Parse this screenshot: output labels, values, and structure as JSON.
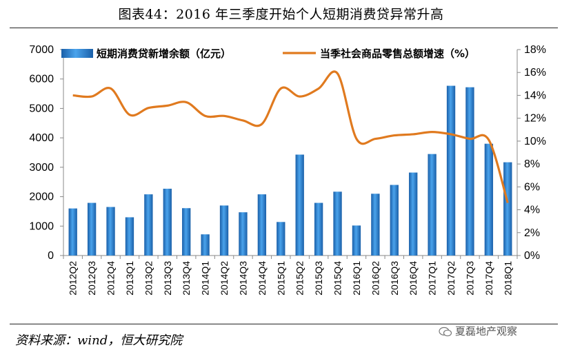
{
  "title": "图表44：2016 年三季度开始个人短期消费贷异常升高",
  "source": "资料来源：wind，恒大研究院",
  "watermark": "夏磊地产观察",
  "colors": {
    "bar": "#2e86d1",
    "bar_dark": "#1a5fa8",
    "line": "#e07a1f"
  },
  "chart_data": {
    "type": "bar+line",
    "categories": [
      "2012Q2",
      "2012Q3",
      "2012Q4",
      "2013Q1",
      "2013Q2",
      "2013Q3",
      "2013Q4",
      "2014Q1",
      "2014Q2",
      "2014Q3",
      "2014Q4",
      "2015Q1",
      "2015Q2",
      "2015Q3",
      "2015Q4",
      "2016Q1",
      "2016Q2",
      "2016Q3",
      "2016Q4",
      "2017Q1",
      "2017Q2",
      "2017Q3",
      "2017Q4",
      "2018Q1"
    ],
    "series": [
      {
        "name": "短期消费贷新增余额（亿元）",
        "type": "bar",
        "axis": "left",
        "values": [
          1600,
          1790,
          1650,
          1300,
          2080,
          2270,
          1610,
          720,
          1700,
          1470,
          2080,
          1140,
          3430,
          1790,
          2170,
          1020,
          2100,
          2400,
          2820,
          3450,
          5770,
          5720,
          3800,
          3170
        ]
      },
      {
        "name": "当季社会商品零售总额增速（%）",
        "type": "line",
        "axis": "right",
        "values": [
          14.0,
          13.9,
          14.6,
          12.3,
          12.9,
          13.1,
          13.4,
          12.2,
          12.2,
          11.8,
          11.5,
          14.6,
          13.9,
          14.6,
          15.9,
          10.2,
          10.2,
          10.5,
          10.6,
          10.8,
          10.6,
          10.2,
          10.1,
          4.6
        ]
      }
    ],
    "yLeft": {
      "min": 0,
      "max": 7000,
      "ticks": [
        0,
        1000,
        2000,
        3000,
        4000,
        5000,
        6000,
        7000
      ]
    },
    "yRight": {
      "min": 0,
      "max": 18,
      "ticks": [
        "0%",
        "2%",
        "4%",
        "6%",
        "8%",
        "10%",
        "12%",
        "14%",
        "16%",
        "18%"
      ]
    },
    "legend": [
      "短期消费贷新增余额（亿元）",
      "当季社会商品零售总额增速（%）"
    ]
  }
}
